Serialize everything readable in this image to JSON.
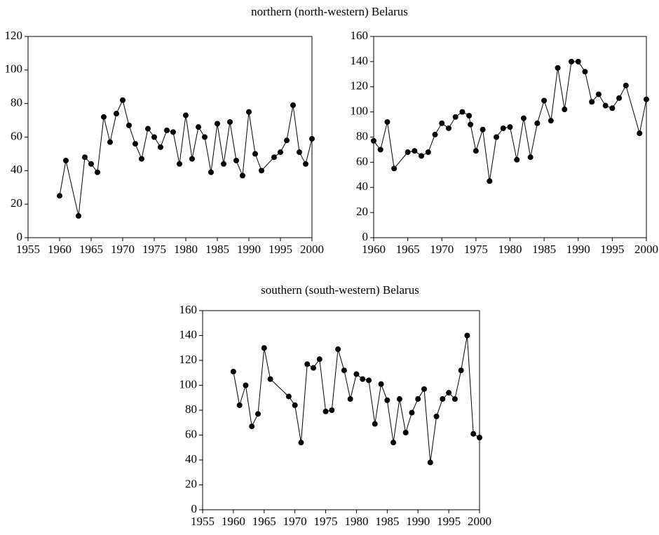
{
  "chart_data": [
    {
      "type": "line",
      "title": "northern (north-western) Belarus",
      "x": [
        1960,
        1961,
        1963,
        1964,
        1965,
        1966,
        1967,
        1968,
        1969,
        1970,
        1971,
        1972,
        1973,
        1974,
        1975,
        1976,
        1977,
        1978,
        1979,
        1980,
        1981,
        1982,
        1983,
        1984,
        1985,
        1986,
        1987,
        1988,
        1989,
        1990,
        1991,
        1992,
        1994,
        1995,
        1996,
        1997,
        1998,
        1999,
        2000
      ],
      "values": [
        25,
        46,
        13,
        48,
        44,
        39,
        72,
        57,
        74,
        82,
        67,
        56,
        47,
        65,
        60,
        54,
        64,
        63,
        44,
        73,
        47,
        66,
        60,
        39,
        68,
        44,
        69,
        46,
        37,
        75,
        50,
        40,
        48,
        51,
        58,
        79,
        51,
        44,
        59
      ],
      "color": "#000000",
      "xlim": [
        1955,
        2000
      ],
      "xticks": [
        1955,
        1960,
        1965,
        1970,
        1975,
        1980,
        1985,
        1990,
        1995,
        2000
      ],
      "ylim": [
        0,
        120
      ],
      "yticks": [
        0,
        20,
        40,
        60,
        80,
        100,
        120
      ]
    },
    {
      "type": "line",
      "x": [
        1960,
        1961,
        1962,
        1963,
        1965,
        1966,
        1967,
        1968,
        1969,
        1970,
        1971,
        1972,
        1973,
        1974,
        1974.2,
        1975,
        1976,
        1977,
        1978,
        1979,
        1980,
        1981,
        1982,
        1983,
        1984,
        1985,
        1986,
        1987,
        1988,
        1989,
        1990,
        1991,
        1992,
        1993,
        1994,
        1995,
        1996,
        1997,
        1999,
        2000
      ],
      "values": [
        77,
        70,
        92,
        55,
        68,
        69,
        65,
        68,
        82,
        91,
        87,
        96,
        100,
        97,
        90,
        69,
        86,
        45,
        80,
        87,
        88,
        62,
        95,
        64,
        91,
        109,
        93,
        135,
        102,
        140,
        140,
        132,
        108,
        114,
        105,
        103,
        111,
        121,
        83,
        110
      ],
      "color": "#000000",
      "xlim": [
        1960,
        2000
      ],
      "xticks": [
        1960,
        1965,
        1970,
        1975,
        1980,
        1985,
        1990,
        1995,
        2000
      ],
      "ylim": [
        0,
        160
      ],
      "yticks": [
        0,
        20,
        40,
        60,
        80,
        100,
        120,
        140,
        160
      ]
    },
    {
      "type": "line",
      "title": "southern (south-western) Belarus",
      "x": [
        1960,
        1961,
        1962,
        1963,
        1964,
        1965,
        1966,
        1969,
        1970,
        1971,
        1972,
        1973,
        1974,
        1975,
        1976,
        1977,
        1978,
        1979,
        1980,
        1981,
        1982,
        1983,
        1984,
        1985,
        1986,
        1987,
        1988,
        1989,
        1990,
        1991,
        1992,
        1993,
        1994,
        1995,
        1996,
        1997,
        1998,
        1999,
        2000
      ],
      "values": [
        111,
        84,
        100,
        67,
        77,
        130,
        105,
        91,
        84,
        54,
        117,
        114,
        121,
        79,
        80,
        129,
        112,
        89,
        109,
        105,
        104,
        69,
        101,
        88,
        54,
        89,
        62,
        78,
        89,
        97,
        38,
        75,
        89,
        94,
        89,
        112,
        140,
        61,
        58
      ],
      "color": "#000000",
      "xlim": [
        1955,
        2000
      ],
      "xticks": [
        1955,
        1960,
        1965,
        1970,
        1975,
        1980,
        1985,
        1990,
        1995,
        2000
      ],
      "ylim": [
        0,
        160
      ],
      "yticks": [
        0,
        20,
        40,
        60,
        80,
        100,
        120,
        140,
        160
      ]
    }
  ]
}
